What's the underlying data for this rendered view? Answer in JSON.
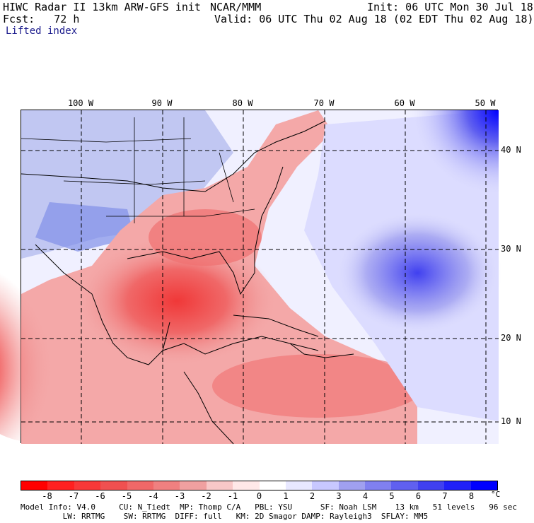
{
  "header": {
    "model": "HIWC Radar II 13km ARW-GFS init",
    "org": "NCAR/MMM",
    "init": "Init: 06 UTC Mon 30 Jul 18",
    "fcst": "Fcst:   72 h",
    "valid": "Valid: 06 UTC Thu 02 Aug 18 (02 EDT Thu 02 Aug 18)",
    "field": "Lifted index"
  },
  "map": {
    "lon_labels": [
      "100 W",
      "90 W",
      "80 W",
      "70 W",
      "60 W",
      "50 W"
    ],
    "lat_labels": [
      "40 N",
      "30 N",
      "20 N",
      "10 N"
    ]
  },
  "colorbar": {
    "labels": [
      "-8",
      "-7",
      "-6",
      "-5",
      "-4",
      "-3",
      "-2",
      "-1",
      "0",
      "1",
      "2",
      "3",
      "4",
      "5",
      "6",
      "7",
      "8"
    ],
    "unit": "°C",
    "colors": [
      "#ff0000",
      "#ff2020",
      "#f83838",
      "#f05050",
      "#f06868",
      "#f08080",
      "#f0a0a0",
      "#f8c8c8",
      "#ffe8e8",
      "#ffffff",
      "#e8e8ff",
      "#c8c8ff",
      "#a0a0f0",
      "#8080f0",
      "#6060f0",
      "#4040f0",
      "#2020f8",
      "#0000ff"
    ]
  },
  "footer": {
    "line1": "Model Info: V4.0     CU: N_Tiedt  MP: Thomp C/A   PBL: YSU      SF: Noah LSM    13 km   51 levels   96 sec",
    "line2": "         LW: RRTMG    SW: RRTMG  DIFF: full   KM: 2D Smagor DAMP: Rayleigh3  SFLAY: MM5"
  }
}
